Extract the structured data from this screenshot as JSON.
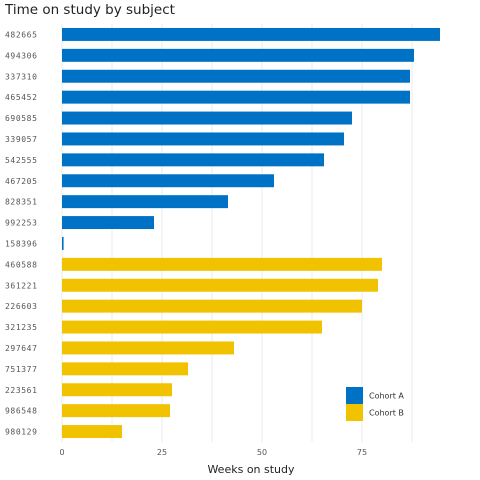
{
  "chart_data": {
    "type": "bar",
    "orientation": "horizontal",
    "title": "Time on study by subject",
    "xlabel": "Weeks on study",
    "ylabel": "",
    "xlim": [
      0,
      100
    ],
    "xticks": [
      0,
      25,
      50,
      75
    ],
    "grid": true,
    "legend_position": "bottom-right",
    "categories": [
      "482665",
      "494306",
      "337310",
      "465452",
      "690585",
      "339057",
      "542555",
      "467205",
      "828351",
      "992253",
      "158396",
      "460588",
      "361221",
      "226603",
      "321235",
      "297647",
      "751377",
      "223561",
      "986548",
      "980129"
    ],
    "series": [
      {
        "name": "Cohort A",
        "color": "#0072c6",
        "values": [
          94.5,
          88,
          87,
          87,
          72.5,
          70.5,
          65.5,
          53,
          41.5,
          23,
          0.4,
          null,
          null,
          null,
          null,
          null,
          null,
          null,
          null,
          null
        ]
      },
      {
        "name": "Cohort B",
        "color": "#f0c200",
        "values": [
          null,
          null,
          null,
          null,
          null,
          null,
          null,
          null,
          null,
          null,
          null,
          80,
          79,
          75,
          65,
          43,
          31.5,
          27.5,
          27,
          15
        ]
      }
    ]
  }
}
